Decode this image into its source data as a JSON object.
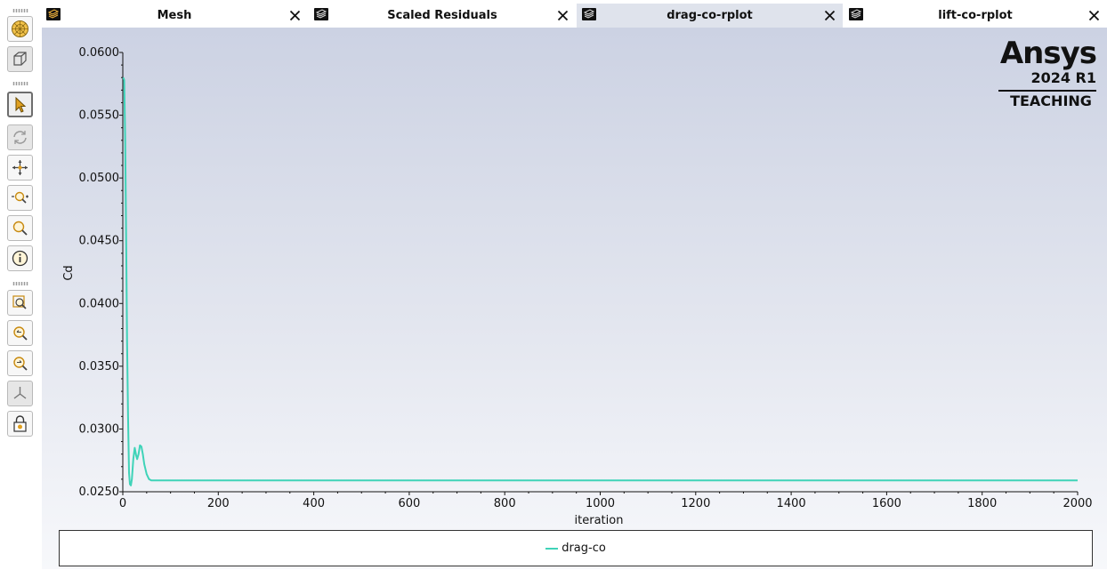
{
  "tabs": [
    {
      "label": "Mesh",
      "active": false
    },
    {
      "label": "Scaled Residuals",
      "active": false
    },
    {
      "label": "drag-co-rplot",
      "active": true
    },
    {
      "label": "lift-co-rplot",
      "active": false
    }
  ],
  "toolbar": {
    "tools": [
      {
        "name": "mesh-display-icon"
      },
      {
        "name": "view-box-icon"
      },
      {
        "name": "select-pointer-icon",
        "active": true
      },
      {
        "name": "rotate-icon",
        "disabled": true
      },
      {
        "name": "pan-icon"
      },
      {
        "name": "zoom-in-out-icon"
      },
      {
        "name": "zoom-icon"
      },
      {
        "name": "probe-info-icon"
      },
      {
        "name": "fit-to-window-icon"
      },
      {
        "name": "zoom-to-area-icon"
      },
      {
        "name": "zoom-out-area-icon"
      },
      {
        "name": "axes-icon",
        "disabled": true
      },
      {
        "name": "lock-view-icon"
      }
    ]
  },
  "logo": {
    "name": "Ansys",
    "version": "2024 R1",
    "edition": "TEACHING"
  },
  "chart_data": {
    "type": "line",
    "title": "",
    "xlabel": "iteration",
    "ylabel": "Cd",
    "xlim": [
      0,
      2000
    ],
    "ylim": [
      0.025,
      0.06
    ],
    "x_ticks": [
      "0",
      "200",
      "400",
      "600",
      "800",
      "1000",
      "1200",
      "1400",
      "1600",
      "1800",
      "2000"
    ],
    "y_ticks": [
      "0.0250",
      "0.0300",
      "0.0350",
      "0.0400",
      "0.0450",
      "0.0500",
      "0.0550",
      "0.0600"
    ],
    "grid": false,
    "legend": "bottom",
    "series": [
      {
        "name": "drag-co",
        "color": "#3fd3b8",
        "x": [
          1,
          3,
          5,
          7,
          9,
          11,
          13,
          15,
          17,
          19,
          22,
          25,
          28,
          30,
          33,
          36,
          39,
          42,
          45,
          50,
          55,
          60,
          70,
          80,
          100,
          200,
          500,
          1000,
          1500,
          2000
        ],
        "y": [
          0.058,
          0.0578,
          0.053,
          0.045,
          0.037,
          0.031,
          0.0265,
          0.0256,
          0.0255,
          0.026,
          0.0276,
          0.0285,
          0.0279,
          0.0276,
          0.028,
          0.0287,
          0.0286,
          0.028,
          0.0272,
          0.0264,
          0.026,
          0.0259,
          0.0259,
          0.0259,
          0.0259,
          0.0259,
          0.0259,
          0.0259,
          0.0259,
          0.0259
        ]
      }
    ]
  }
}
